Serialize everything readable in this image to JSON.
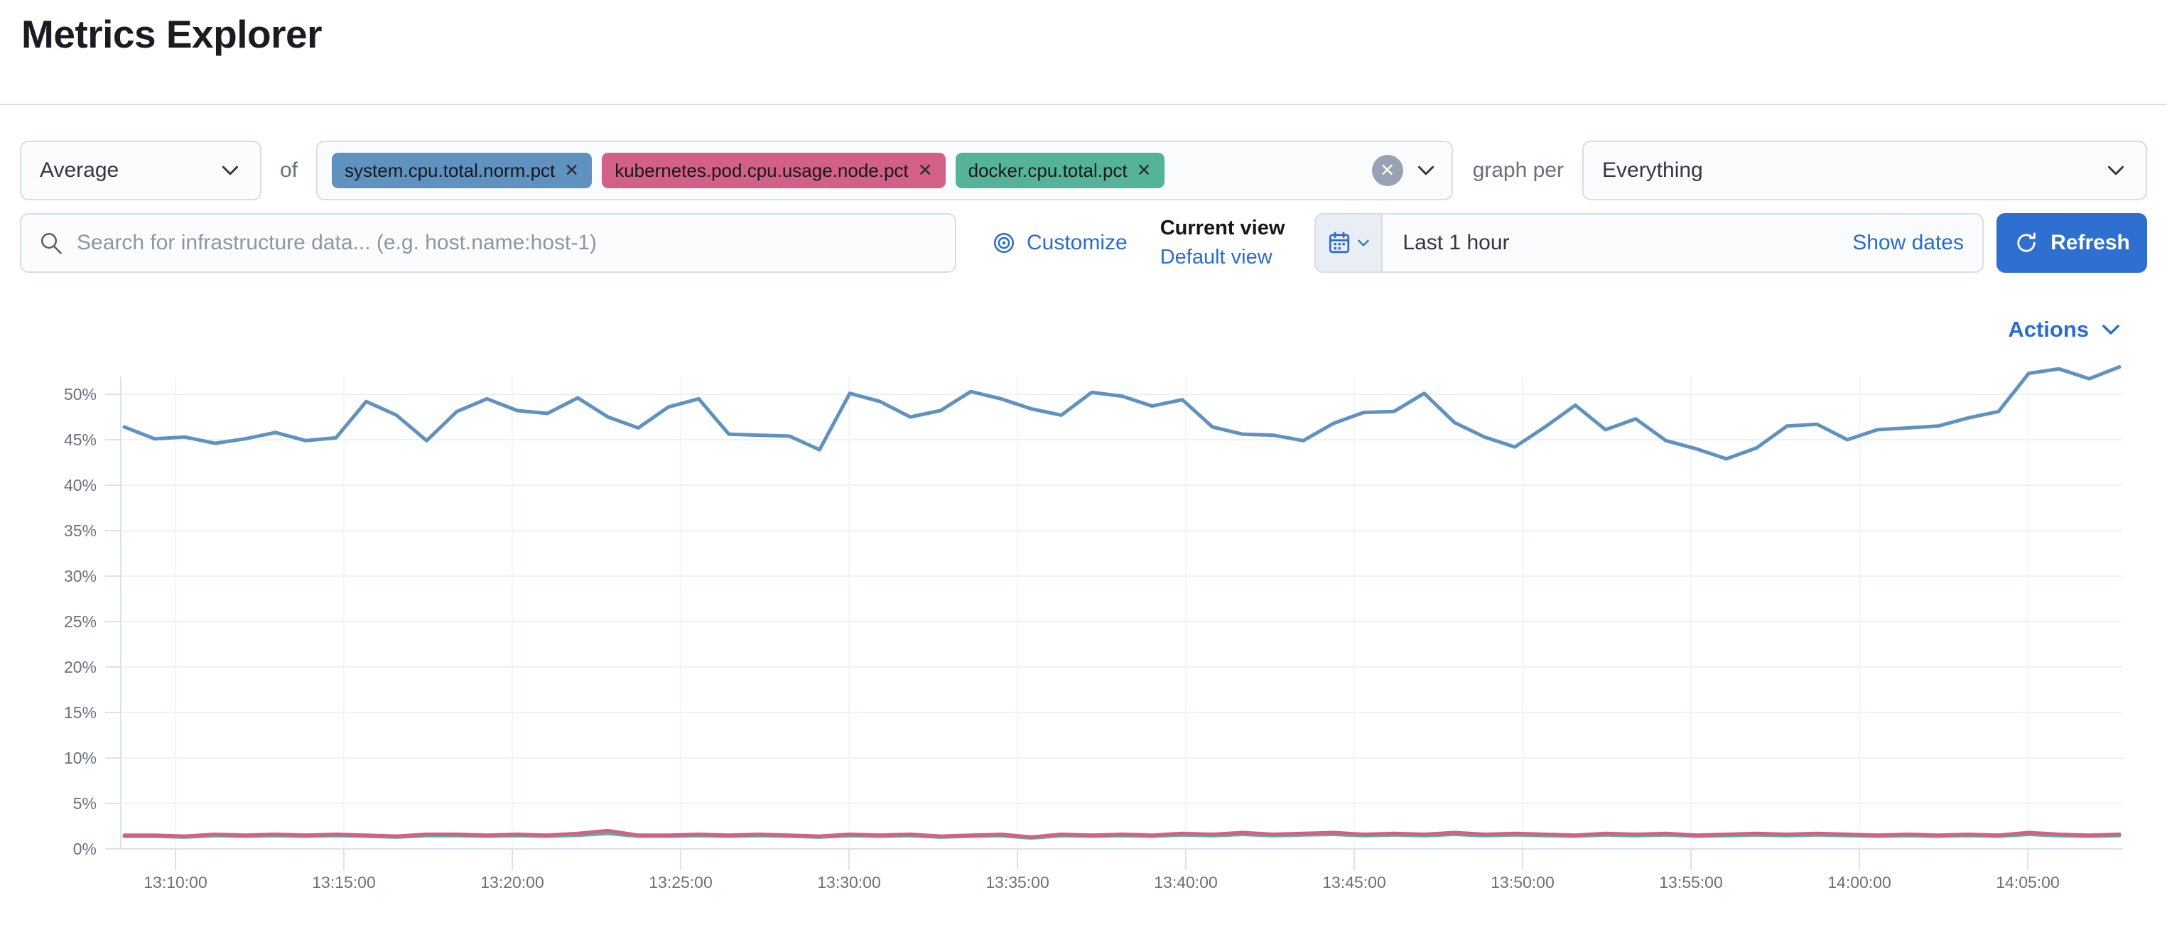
{
  "page": {
    "title": "Metrics Explorer"
  },
  "toolbar": {
    "aggregation": {
      "value": "Average"
    },
    "of_label": "of",
    "metrics": [
      {
        "label": "system.cpu.total.norm.pct",
        "color": "#6092C0",
        "remove_icon": "x"
      },
      {
        "label": "kubernetes.pod.cpu.usage.node.pct",
        "color": "#D36086",
        "remove_icon": "x"
      },
      {
        "label": "docker.cpu.total.pct",
        "color": "#54B399",
        "remove_icon": "x"
      }
    ],
    "clear_all_icon": "x-circle",
    "graph_per_label": "graph per",
    "group_by": {
      "value": "Everything"
    }
  },
  "searchbar": {
    "placeholder": "Search for infrastructure data... (e.g. host.name:host-1)"
  },
  "view_controls": {
    "customize_label": "Customize",
    "current_view_label": "Current view",
    "selected_view": "Default view"
  },
  "time_picker": {
    "value": "Last 1 hour",
    "show_dates_label": "Show dates",
    "refresh_label": "Refresh"
  },
  "actions": {
    "label": "Actions"
  },
  "chart_data": {
    "type": "line",
    "title": "",
    "xlabel": "",
    "ylabel": "",
    "unit": "%",
    "ylim": [
      0,
      55
    ],
    "grid": true,
    "legend_position": "none",
    "y_ticks": [
      "0%",
      "5%",
      "10%",
      "15%",
      "20%",
      "25%",
      "30%",
      "35%",
      "40%",
      "45%",
      "50%"
    ],
    "x_ticks": [
      "13:10:00",
      "13:15:00",
      "13:20:00",
      "13:25:00",
      "13:30:00",
      "13:35:00",
      "13:40:00",
      "13:45:00",
      "13:50:00",
      "13:55:00",
      "14:00:00",
      "14:05:00"
    ],
    "series": [
      {
        "name": "docker.cpu.total.pct",
        "color": "#54B399",
        "values": [
          1.38,
          1.38,
          1.3,
          1.45,
          1.4,
          1.45,
          1.4,
          1.45,
          1.4,
          1.3,
          1.45,
          1.45,
          1.4,
          1.45,
          1.4,
          1.5,
          1.7,
          1.4,
          1.4,
          1.45,
          1.4,
          1.45,
          1.4,
          1.3,
          1.45,
          1.4,
          1.45,
          1.3,
          1.4,
          1.45,
          1.2,
          1.45,
          1.4,
          1.45,
          1.4,
          1.55,
          1.45,
          1.6,
          1.45,
          1.55,
          1.6,
          1.45,
          1.55,
          1.45,
          1.6,
          1.45,
          1.55,
          1.45,
          1.4,
          1.55,
          1.45,
          1.55,
          1.4,
          1.45,
          1.55,
          1.45,
          1.55,
          1.45,
          1.4,
          1.45,
          1.4,
          1.45,
          1.4,
          1.6,
          1.45,
          1.4,
          1.45
        ]
      },
      {
        "name": "kubernetes.pod.cpu.usage.node.pct",
        "color": "#D36086",
        "values": [
          1.5,
          1.5,
          1.4,
          1.6,
          1.5,
          1.6,
          1.5,
          1.6,
          1.5,
          1.4,
          1.6,
          1.6,
          1.5,
          1.6,
          1.5,
          1.7,
          2.0,
          1.5,
          1.5,
          1.6,
          1.5,
          1.6,
          1.5,
          1.4,
          1.6,
          1.5,
          1.6,
          1.4,
          1.5,
          1.6,
          1.3,
          1.6,
          1.5,
          1.6,
          1.5,
          1.7,
          1.6,
          1.8,
          1.6,
          1.7,
          1.8,
          1.6,
          1.7,
          1.6,
          1.8,
          1.6,
          1.7,
          1.6,
          1.5,
          1.7,
          1.6,
          1.7,
          1.5,
          1.6,
          1.7,
          1.6,
          1.7,
          1.6,
          1.5,
          1.6,
          1.5,
          1.6,
          1.5,
          1.8,
          1.6,
          1.5,
          1.6
        ]
      },
      {
        "name": "system.cpu.total.norm.pct",
        "color": "#6092C0",
        "values": [
          46.4,
          45.1,
          45.3,
          44.6,
          45.1,
          45.8,
          44.9,
          45.2,
          49.2,
          47.7,
          44.9,
          48.1,
          49.5,
          48.2,
          47.9,
          49.6,
          47.5,
          46.3,
          48.6,
          49.5,
          45.6,
          45.5,
          45.4,
          43.9,
          50.1,
          49.2,
          47.5,
          48.2,
          50.3,
          49.5,
          48.4,
          47.7,
          50.2,
          49.8,
          48.7,
          49.4,
          46.4,
          45.6,
          45.5,
          44.9,
          46.8,
          48.0,
          48.1,
          50.1,
          46.9,
          45.3,
          44.2,
          46.4,
          48.8,
          46.1,
          47.3,
          44.9,
          44.0,
          42.9,
          44.1,
          46.5,
          46.7,
          45.0,
          46.1,
          46.3,
          46.5,
          47.4,
          48.1,
          52.3,
          52.8,
          51.7,
          53.0
        ]
      }
    ]
  }
}
